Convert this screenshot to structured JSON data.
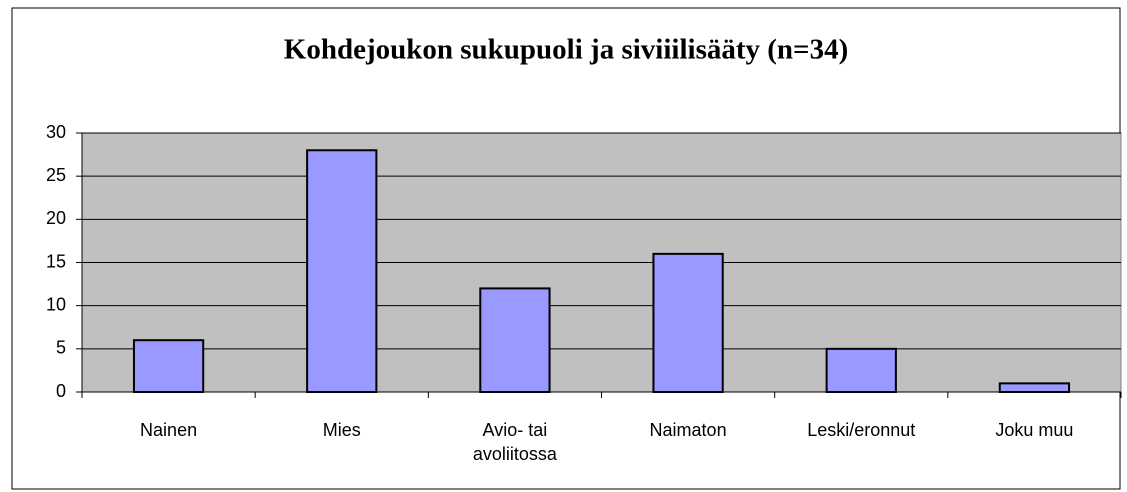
{
  "chart_data": {
    "type": "bar",
    "title": "Kohdejoukon sukupuoli ja siviiilisääty (n=34)",
    "categories": [
      "Nainen",
      "Mies",
      "Avio- tai avoliitossa",
      "Naimaton",
      "Leski/eronnut",
      "Joku muu"
    ],
    "values": [
      6,
      28,
      12,
      16,
      5,
      1
    ],
    "color": "#9999ff",
    "plot_background": "#c0c0c0",
    "ylim": [
      0,
      30
    ],
    "yticks": [
      0,
      5,
      10,
      15,
      20,
      25,
      30
    ],
    "grid": true
  }
}
